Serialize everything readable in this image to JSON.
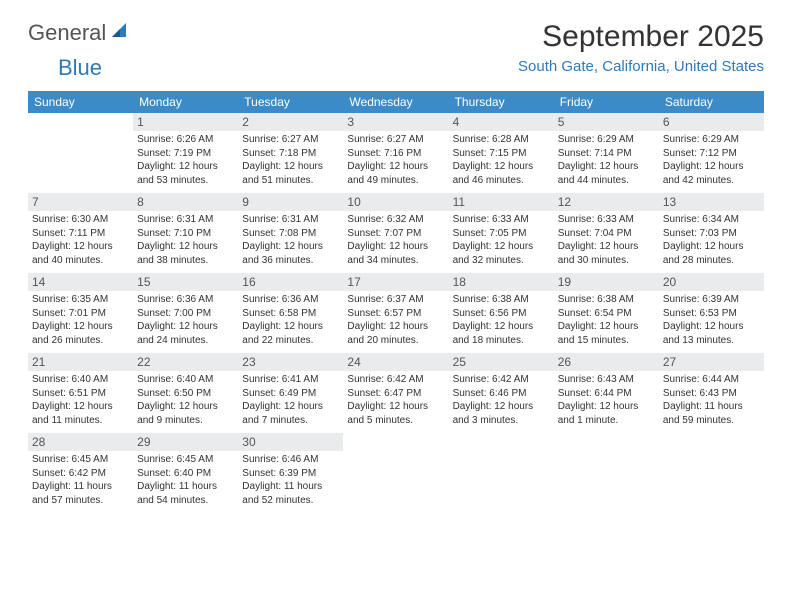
{
  "logo": {
    "word1": "General",
    "word2": "Blue"
  },
  "title": "September 2025",
  "location": "South Gate, California, United States",
  "colors": {
    "header_bg": "#3b8bc9",
    "accent": "#2f79b9",
    "daynum_bg": "#e9ebec",
    "text": "#333333",
    "logo_gray": "#555555"
  },
  "day_headers": [
    "Sunday",
    "Monday",
    "Tuesday",
    "Wednesday",
    "Thursday",
    "Friday",
    "Saturday"
  ],
  "weeks": [
    [
      null,
      {
        "n": "1",
        "sr": "Sunrise: 6:26 AM",
        "ss": "Sunset: 7:19 PM",
        "d1": "Daylight: 12 hours",
        "d2": "and 53 minutes."
      },
      {
        "n": "2",
        "sr": "Sunrise: 6:27 AM",
        "ss": "Sunset: 7:18 PM",
        "d1": "Daylight: 12 hours",
        "d2": "and 51 minutes."
      },
      {
        "n": "3",
        "sr": "Sunrise: 6:27 AM",
        "ss": "Sunset: 7:16 PM",
        "d1": "Daylight: 12 hours",
        "d2": "and 49 minutes."
      },
      {
        "n": "4",
        "sr": "Sunrise: 6:28 AM",
        "ss": "Sunset: 7:15 PM",
        "d1": "Daylight: 12 hours",
        "d2": "and 46 minutes."
      },
      {
        "n": "5",
        "sr": "Sunrise: 6:29 AM",
        "ss": "Sunset: 7:14 PM",
        "d1": "Daylight: 12 hours",
        "d2": "and 44 minutes."
      },
      {
        "n": "6",
        "sr": "Sunrise: 6:29 AM",
        "ss": "Sunset: 7:12 PM",
        "d1": "Daylight: 12 hours",
        "d2": "and 42 minutes."
      }
    ],
    [
      {
        "n": "7",
        "sr": "Sunrise: 6:30 AM",
        "ss": "Sunset: 7:11 PM",
        "d1": "Daylight: 12 hours",
        "d2": "and 40 minutes."
      },
      {
        "n": "8",
        "sr": "Sunrise: 6:31 AM",
        "ss": "Sunset: 7:10 PM",
        "d1": "Daylight: 12 hours",
        "d2": "and 38 minutes."
      },
      {
        "n": "9",
        "sr": "Sunrise: 6:31 AM",
        "ss": "Sunset: 7:08 PM",
        "d1": "Daylight: 12 hours",
        "d2": "and 36 minutes."
      },
      {
        "n": "10",
        "sr": "Sunrise: 6:32 AM",
        "ss": "Sunset: 7:07 PM",
        "d1": "Daylight: 12 hours",
        "d2": "and 34 minutes."
      },
      {
        "n": "11",
        "sr": "Sunrise: 6:33 AM",
        "ss": "Sunset: 7:05 PM",
        "d1": "Daylight: 12 hours",
        "d2": "and 32 minutes."
      },
      {
        "n": "12",
        "sr": "Sunrise: 6:33 AM",
        "ss": "Sunset: 7:04 PM",
        "d1": "Daylight: 12 hours",
        "d2": "and 30 minutes."
      },
      {
        "n": "13",
        "sr": "Sunrise: 6:34 AM",
        "ss": "Sunset: 7:03 PM",
        "d1": "Daylight: 12 hours",
        "d2": "and 28 minutes."
      }
    ],
    [
      {
        "n": "14",
        "sr": "Sunrise: 6:35 AM",
        "ss": "Sunset: 7:01 PM",
        "d1": "Daylight: 12 hours",
        "d2": "and 26 minutes."
      },
      {
        "n": "15",
        "sr": "Sunrise: 6:36 AM",
        "ss": "Sunset: 7:00 PM",
        "d1": "Daylight: 12 hours",
        "d2": "and 24 minutes."
      },
      {
        "n": "16",
        "sr": "Sunrise: 6:36 AM",
        "ss": "Sunset: 6:58 PM",
        "d1": "Daylight: 12 hours",
        "d2": "and 22 minutes."
      },
      {
        "n": "17",
        "sr": "Sunrise: 6:37 AM",
        "ss": "Sunset: 6:57 PM",
        "d1": "Daylight: 12 hours",
        "d2": "and 20 minutes."
      },
      {
        "n": "18",
        "sr": "Sunrise: 6:38 AM",
        "ss": "Sunset: 6:56 PM",
        "d1": "Daylight: 12 hours",
        "d2": "and 18 minutes."
      },
      {
        "n": "19",
        "sr": "Sunrise: 6:38 AM",
        "ss": "Sunset: 6:54 PM",
        "d1": "Daylight: 12 hours",
        "d2": "and 15 minutes."
      },
      {
        "n": "20",
        "sr": "Sunrise: 6:39 AM",
        "ss": "Sunset: 6:53 PM",
        "d1": "Daylight: 12 hours",
        "d2": "and 13 minutes."
      }
    ],
    [
      {
        "n": "21",
        "sr": "Sunrise: 6:40 AM",
        "ss": "Sunset: 6:51 PM",
        "d1": "Daylight: 12 hours",
        "d2": "and 11 minutes."
      },
      {
        "n": "22",
        "sr": "Sunrise: 6:40 AM",
        "ss": "Sunset: 6:50 PM",
        "d1": "Daylight: 12 hours",
        "d2": "and 9 minutes."
      },
      {
        "n": "23",
        "sr": "Sunrise: 6:41 AM",
        "ss": "Sunset: 6:49 PM",
        "d1": "Daylight: 12 hours",
        "d2": "and 7 minutes."
      },
      {
        "n": "24",
        "sr": "Sunrise: 6:42 AM",
        "ss": "Sunset: 6:47 PM",
        "d1": "Daylight: 12 hours",
        "d2": "and 5 minutes."
      },
      {
        "n": "25",
        "sr": "Sunrise: 6:42 AM",
        "ss": "Sunset: 6:46 PM",
        "d1": "Daylight: 12 hours",
        "d2": "and 3 minutes."
      },
      {
        "n": "26",
        "sr": "Sunrise: 6:43 AM",
        "ss": "Sunset: 6:44 PM",
        "d1": "Daylight: 12 hours",
        "d2": "and 1 minute."
      },
      {
        "n": "27",
        "sr": "Sunrise: 6:44 AM",
        "ss": "Sunset: 6:43 PM",
        "d1": "Daylight: 11 hours",
        "d2": "and 59 minutes."
      }
    ],
    [
      {
        "n": "28",
        "sr": "Sunrise: 6:45 AM",
        "ss": "Sunset: 6:42 PM",
        "d1": "Daylight: 11 hours",
        "d2": "and 57 minutes."
      },
      {
        "n": "29",
        "sr": "Sunrise: 6:45 AM",
        "ss": "Sunset: 6:40 PM",
        "d1": "Daylight: 11 hours",
        "d2": "and 54 minutes."
      },
      {
        "n": "30",
        "sr": "Sunrise: 6:46 AM",
        "ss": "Sunset: 6:39 PM",
        "d1": "Daylight: 11 hours",
        "d2": "and 52 minutes."
      },
      null,
      null,
      null,
      null
    ]
  ]
}
